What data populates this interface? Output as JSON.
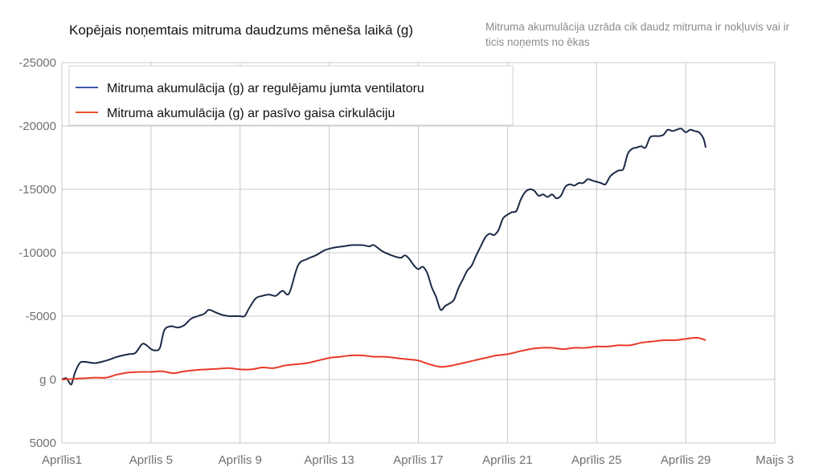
{
  "chart_data": {
    "type": "line",
    "title": "Kopējais noņemtais mitruma daudzums mēneša laikā (g)",
    "subtitle": "Mitruma akumulācija uzrāda cik daudz mitruma ir nokļuvis vai ir ticis noņemts no ēkas",
    "ylabel": "",
    "xlabel": "",
    "ylim": [
      5000,
      -25000
    ],
    "y_ticks": [
      {
        "value": -25000,
        "label": "-25000"
      },
      {
        "value": -20000,
        "label": "-20000"
      },
      {
        "value": -15000,
        "label": "-15000"
      },
      {
        "value": -10000,
        "label": "-10000"
      },
      {
        "value": -5000,
        "label": "-5000"
      },
      {
        "value": 0,
        "label": "g  0"
      },
      {
        "value": 5000,
        "label": "5000"
      }
    ],
    "xlim": [
      1,
      33
    ],
    "x_ticks": [
      {
        "value": 1,
        "label": "Aprīlis1"
      },
      {
        "value": 5,
        "label": "Aprīlis 5"
      },
      {
        "value": 9,
        "label": "Aprīlis 9"
      },
      {
        "value": 13,
        "label": "Aprīlis 13"
      },
      {
        "value": 17,
        "label": "Aprīlis 17"
      },
      {
        "value": 21,
        "label": "Aprīlis 21"
      },
      {
        "value": 25,
        "label": "Aprīlis  25"
      },
      {
        "value": 29,
        "label": "Aprīlis 29"
      },
      {
        "value": 33,
        "label": "Maijs 3"
      }
    ],
    "grid": true,
    "legend_position": "top-left",
    "series": [
      {
        "name": "Mitruma akumulācija (g) ar regulējamu jumta ventilatoru",
        "color": "#1b2a45",
        "legend_color": "#3b5ba5",
        "x": [
          1.0,
          1.2,
          1.4,
          1.5,
          1.6,
          1.8,
          2.0,
          2.5,
          3.0,
          3.5,
          4.0,
          4.3,
          4.6,
          4.8,
          5.0,
          5.2,
          5.4,
          5.6,
          5.9,
          6.2,
          6.5,
          6.8,
          7.1,
          7.4,
          7.6,
          7.9,
          8.2,
          8.5,
          8.8,
          9.0,
          9.2,
          9.4,
          9.7,
          10.0,
          10.3,
          10.6,
          10.9,
          11.2,
          11.6,
          12.0,
          12.4,
          12.8,
          13.2,
          13.6,
          14.0,
          14.5,
          14.8,
          15.0,
          15.4,
          15.8,
          16.2,
          16.4,
          16.6,
          16.8,
          17.0,
          17.2,
          17.4,
          17.6,
          17.8,
          18.0,
          18.2,
          18.4,
          18.6,
          18.8,
          19.0,
          19.2,
          19.4,
          19.6,
          19.8,
          20.0,
          20.2,
          20.4,
          20.6,
          20.8,
          21.0,
          21.2,
          21.4,
          21.6,
          21.8,
          22.0,
          22.2,
          22.4,
          22.6,
          22.8,
          23.0,
          23.2,
          23.4,
          23.6,
          23.8,
          24.0,
          24.2,
          24.4,
          24.6,
          24.8,
          25.0,
          25.2,
          25.4,
          25.6,
          25.8,
          26.0,
          26.2,
          26.4,
          26.6,
          26.8,
          27.0,
          27.2,
          27.4,
          27.6,
          27.8,
          28.0,
          28.2,
          28.4,
          28.6,
          28.8,
          29.0,
          29.2,
          29.4,
          29.6,
          29.8,
          29.9
        ],
        "values": [
          0,
          -100,
          400,
          0,
          -600,
          -1300,
          -1400,
          -1300,
          -1500,
          -1800,
          -2000,
          -2100,
          -2800,
          -2700,
          -2400,
          -2300,
          -2500,
          -3900,
          -4200,
          -4100,
          -4300,
          -4800,
          -5000,
          -5200,
          -5500,
          -5300,
          -5100,
          -5000,
          -5000,
          -5000,
          -5000,
          -5600,
          -6400,
          -6600,
          -6700,
          -6600,
          -7000,
          -6800,
          -9000,
          -9500,
          -9800,
          -10200,
          -10400,
          -10500,
          -10600,
          -10600,
          -10500,
          -10600,
          -10100,
          -9800,
          -9600,
          -9800,
          -9500,
          -9000,
          -8700,
          -8900,
          -8400,
          -7300,
          -6500,
          -5500,
          -5800,
          -6000,
          -6300,
          -7200,
          -7900,
          -8600,
          -9000,
          -9800,
          -10500,
          -11200,
          -11500,
          -11400,
          -11800,
          -12700,
          -13000,
          -13200,
          -13300,
          -14200,
          -14800,
          -15000,
          -14900,
          -14500,
          -14600,
          -14400,
          -14600,
          -14300,
          -14500,
          -15200,
          -15400,
          -15300,
          -15500,
          -15500,
          -15800,
          -15700,
          -15600,
          -15500,
          -15400,
          -16000,
          -16300,
          -16500,
          -16600,
          -17800,
          -18200,
          -18300,
          -18400,
          -18300,
          -19100,
          -19200,
          -19200,
          -19300,
          -19700,
          -19600,
          -19700,
          -19800,
          -19500,
          -19700,
          -19600,
          -19500,
          -19000,
          -18300
        ]
      },
      {
        "name": "Mitruma akumulācija (g) ar pasīvo gaisa cirkulāciju",
        "color": "#e83a2a",
        "legend_color": "#e8542a",
        "x": [
          1.0,
          1.5,
          2.0,
          2.5,
          3.0,
          3.5,
          4.0,
          4.5,
          5.0,
          5.5,
          6.0,
          6.5,
          7.0,
          7.5,
          8.0,
          8.5,
          9.0,
          9.5,
          10.0,
          10.5,
          11.0,
          11.5,
          12.0,
          12.5,
          13.0,
          13.5,
          14.0,
          14.5,
          15.0,
          15.5,
          16.0,
          16.5,
          17.0,
          17.5,
          18.0,
          18.5,
          19.0,
          19.5,
          20.0,
          20.5,
          21.0,
          21.5,
          22.0,
          22.5,
          23.0,
          23.5,
          24.0,
          24.5,
          25.0,
          25.5,
          26.0,
          26.5,
          27.0,
          27.5,
          28.0,
          28.5,
          29.0,
          29.5,
          29.9
        ],
        "values": [
          0,
          -50,
          -100,
          -150,
          -150,
          -400,
          -550,
          -600,
          -600,
          -650,
          -500,
          -650,
          -750,
          -800,
          -850,
          -900,
          -800,
          -800,
          -950,
          -900,
          -1100,
          -1200,
          -1300,
          -1500,
          -1700,
          -1800,
          -1900,
          -1900,
          -1800,
          -1800,
          -1700,
          -1600,
          -1500,
          -1200,
          -1000,
          -1100,
          -1300,
          -1500,
          -1700,
          -1900,
          -2000,
          -2200,
          -2400,
          -2500,
          -2500,
          -2400,
          -2500,
          -2500,
          -2600,
          -2600,
          -2700,
          -2700,
          -2900,
          -3000,
          -3100,
          -3100,
          -3200,
          -3300,
          -3100
        ]
      }
    ]
  }
}
